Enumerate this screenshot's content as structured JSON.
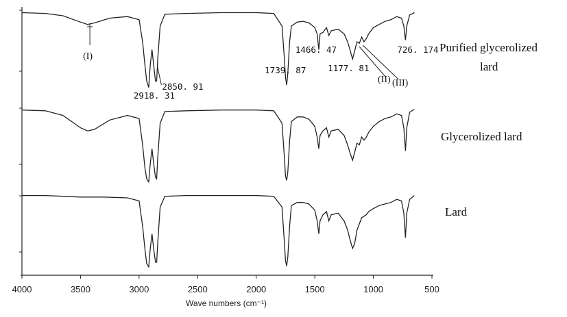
{
  "chart_data": {
    "type": "line",
    "xlabel": "Wave numbers (cm⁻¹)",
    "xlim": [
      4000,
      500
    ],
    "x_ticks": [
      "4000",
      "3500",
      "3000",
      "2500",
      "2000",
      "1500",
      "1000",
      "500"
    ],
    "series": [
      {
        "name": "Purified glycerolized lard",
        "points": [
          [
            4000,
            0.97
          ],
          [
            3800,
            0.96
          ],
          [
            3650,
            0.93
          ],
          [
            3500,
            0.85
          ],
          [
            3440,
            0.82
          ],
          [
            3380,
            0.84
          ],
          [
            3250,
            0.9
          ],
          [
            3100,
            0.92
          ],
          [
            3000,
            0.88
          ],
          [
            2970,
            0.6
          ],
          [
            2950,
            0.3
          ],
          [
            2935,
            0.1
          ],
          [
            2918,
            0.02
          ],
          [
            2905,
            0.3
          ],
          [
            2890,
            0.5
          ],
          [
            2875,
            0.3
          ],
          [
            2860,
            0.1
          ],
          [
            2850,
            0.1
          ],
          [
            2840,
            0.4
          ],
          [
            2820,
            0.8
          ],
          [
            2780,
            0.95
          ],
          [
            2600,
            0.96
          ],
          [
            2300,
            0.97
          ],
          [
            2000,
            0.97
          ],
          [
            1850,
            0.96
          ],
          [
            1780,
            0.8
          ],
          [
            1760,
            0.4
          ],
          [
            1750,
            0.15
          ],
          [
            1740,
            0.05
          ],
          [
            1730,
            0.2
          ],
          [
            1715,
            0.6
          ],
          [
            1700,
            0.8
          ],
          [
            1650,
            0.85
          ],
          [
            1600,
            0.86
          ],
          [
            1550,
            0.84
          ],
          [
            1500,
            0.78
          ],
          [
            1480,
            0.7
          ],
          [
            1466,
            0.5
          ],
          [
            1455,
            0.7
          ],
          [
            1430,
            0.72
          ],
          [
            1400,
            0.78
          ],
          [
            1380,
            0.68
          ],
          [
            1360,
            0.74
          ],
          [
            1300,
            0.76
          ],
          [
            1250,
            0.7
          ],
          [
            1220,
            0.6
          ],
          [
            1200,
            0.5
          ],
          [
            1178,
            0.38
          ],
          [
            1160,
            0.48
          ],
          [
            1140,
            0.6
          ],
          [
            1120,
            0.58
          ],
          [
            1100,
            0.66
          ],
          [
            1080,
            0.6
          ],
          [
            1060,
            0.64
          ],
          [
            1040,
            0.7
          ],
          [
            1000,
            0.78
          ],
          [
            950,
            0.82
          ],
          [
            900,
            0.86
          ],
          [
            850,
            0.88
          ],
          [
            800,
            0.92
          ],
          [
            760,
            0.9
          ],
          [
            740,
            0.8
          ],
          [
            726,
            0.62
          ],
          [
            715,
            0.8
          ],
          [
            690,
            0.94
          ],
          [
            650,
            0.97
          ]
        ]
      },
      {
        "name": "Glycerolized lard",
        "points": [
          [
            4000,
            0.95
          ],
          [
            3800,
            0.94
          ],
          [
            3650,
            0.88
          ],
          [
            3500,
            0.72
          ],
          [
            3440,
            0.68
          ],
          [
            3380,
            0.7
          ],
          [
            3250,
            0.82
          ],
          [
            3100,
            0.88
          ],
          [
            3000,
            0.84
          ],
          [
            2970,
            0.5
          ],
          [
            2950,
            0.2
          ],
          [
            2935,
            0.06
          ],
          [
            2918,
            0.02
          ],
          [
            2905,
            0.25
          ],
          [
            2890,
            0.45
          ],
          [
            2875,
            0.25
          ],
          [
            2860,
            0.08
          ],
          [
            2850,
            0.06
          ],
          [
            2840,
            0.35
          ],
          [
            2820,
            0.78
          ],
          [
            2780,
            0.93
          ],
          [
            2600,
            0.94
          ],
          [
            2300,
            0.95
          ],
          [
            2000,
            0.95
          ],
          [
            1850,
            0.94
          ],
          [
            1780,
            0.78
          ],
          [
            1760,
            0.35
          ],
          [
            1750,
            0.1
          ],
          [
            1740,
            0.04
          ],
          [
            1730,
            0.15
          ],
          [
            1715,
            0.55
          ],
          [
            1700,
            0.8
          ],
          [
            1650,
            0.86
          ],
          [
            1600,
            0.86
          ],
          [
            1550,
            0.83
          ],
          [
            1500,
            0.74
          ],
          [
            1480,
            0.6
          ],
          [
            1466,
            0.45
          ],
          [
            1455,
            0.62
          ],
          [
            1430,
            0.68
          ],
          [
            1400,
            0.72
          ],
          [
            1380,
            0.6
          ],
          [
            1360,
            0.68
          ],
          [
            1300,
            0.7
          ],
          [
            1250,
            0.62
          ],
          [
            1220,
            0.5
          ],
          [
            1200,
            0.4
          ],
          [
            1178,
            0.3
          ],
          [
            1160,
            0.4
          ],
          [
            1140,
            0.52
          ],
          [
            1120,
            0.5
          ],
          [
            1100,
            0.6
          ],
          [
            1080,
            0.56
          ],
          [
            1060,
            0.6
          ],
          [
            1040,
            0.66
          ],
          [
            1000,
            0.74
          ],
          [
            950,
            0.8
          ],
          [
            900,
            0.84
          ],
          [
            850,
            0.86
          ],
          [
            800,
            0.9
          ],
          [
            760,
            0.88
          ],
          [
            740,
            0.72
          ],
          [
            726,
            0.42
          ],
          [
            715,
            0.72
          ],
          [
            690,
            0.92
          ],
          [
            650,
            0.96
          ]
        ]
      },
      {
        "name": "Lard",
        "points": [
          [
            4000,
            0.95
          ],
          [
            3800,
            0.95
          ],
          [
            3650,
            0.94
          ],
          [
            3500,
            0.93
          ],
          [
            3300,
            0.93
          ],
          [
            3100,
            0.92
          ],
          [
            3000,
            0.88
          ],
          [
            2970,
            0.55
          ],
          [
            2950,
            0.25
          ],
          [
            2935,
            0.06
          ],
          [
            2918,
            0.02
          ],
          [
            2905,
            0.25
          ],
          [
            2890,
            0.45
          ],
          [
            2875,
            0.25
          ],
          [
            2860,
            0.08
          ],
          [
            2850,
            0.08
          ],
          [
            2840,
            0.35
          ],
          [
            2820,
            0.8
          ],
          [
            2780,
            0.94
          ],
          [
            2600,
            0.95
          ],
          [
            2300,
            0.95
          ],
          [
            2000,
            0.95
          ],
          [
            1850,
            0.94
          ],
          [
            1780,
            0.8
          ],
          [
            1760,
            0.35
          ],
          [
            1750,
            0.1
          ],
          [
            1740,
            0.03
          ],
          [
            1730,
            0.15
          ],
          [
            1715,
            0.55
          ],
          [
            1700,
            0.82
          ],
          [
            1650,
            0.86
          ],
          [
            1600,
            0.86
          ],
          [
            1550,
            0.84
          ],
          [
            1500,
            0.76
          ],
          [
            1480,
            0.62
          ],
          [
            1466,
            0.45
          ],
          [
            1455,
            0.62
          ],
          [
            1430,
            0.7
          ],
          [
            1400,
            0.74
          ],
          [
            1380,
            0.62
          ],
          [
            1360,
            0.7
          ],
          [
            1300,
            0.72
          ],
          [
            1250,
            0.62
          ],
          [
            1220,
            0.5
          ],
          [
            1200,
            0.38
          ],
          [
            1178,
            0.26
          ],
          [
            1160,
            0.32
          ],
          [
            1140,
            0.5
          ],
          [
            1120,
            0.58
          ],
          [
            1100,
            0.66
          ],
          [
            1080,
            0.68
          ],
          [
            1060,
            0.7
          ],
          [
            1040,
            0.74
          ],
          [
            1000,
            0.78
          ],
          [
            950,
            0.82
          ],
          [
            900,
            0.84
          ],
          [
            850,
            0.86
          ],
          [
            800,
            0.9
          ],
          [
            760,
            0.88
          ],
          [
            740,
            0.72
          ],
          [
            726,
            0.4
          ],
          [
            715,
            0.72
          ],
          [
            690,
            0.9
          ],
          [
            650,
            0.95
          ]
        ]
      }
    ],
    "peak_labels": [
      "2918. 31",
      "2850. 91",
      "1739. 87",
      "1466. 47",
      "1177. 81",
      "726. 174"
    ],
    "peak_positions": [
      2918.31,
      2850.91,
      1739.87,
      1466.47,
      1177.81,
      726.174
    ],
    "markers": [
      {
        "label": "(I)",
        "x": 3420
      },
      {
        "label": "(II)",
        "x": 1120
      },
      {
        "label": "(III)",
        "x": 1090
      }
    ],
    "grid": false,
    "legend": "right"
  }
}
